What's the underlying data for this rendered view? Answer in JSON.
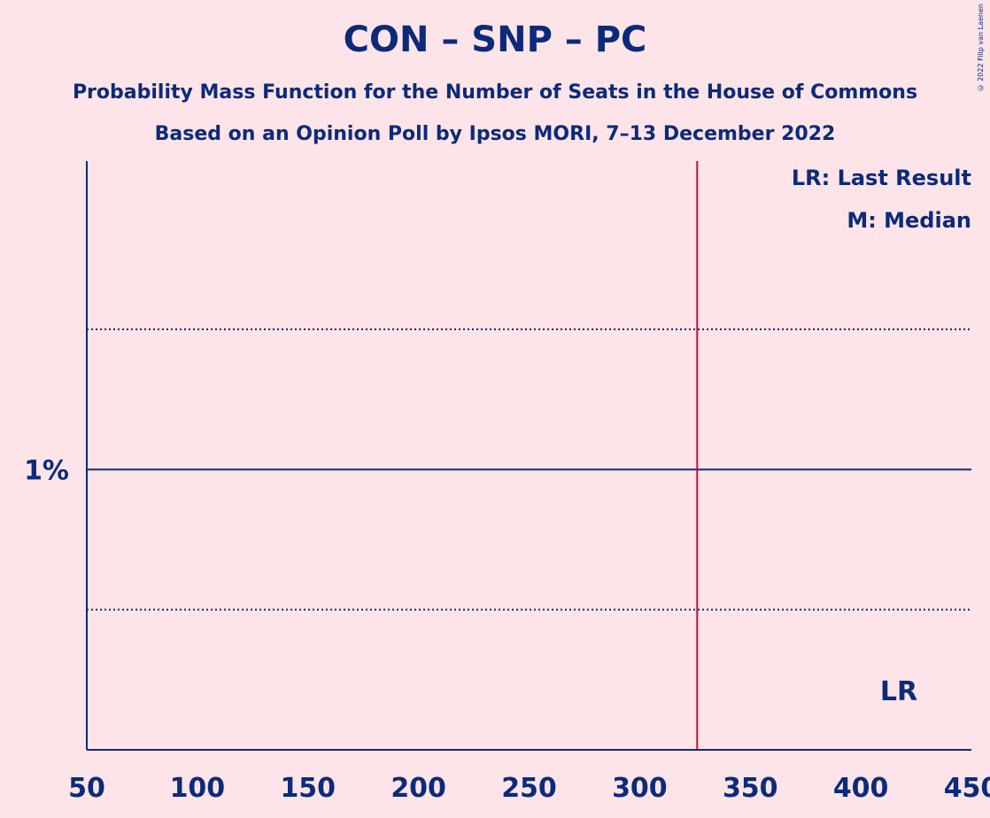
{
  "title": "CON – SNP – PC",
  "subtitle": "Probability Mass Function for the Number of Seats in the House of Commons",
  "subtitle2": "Based on an Opinion Poll by Ipsos MORI, 7–13 December 2022",
  "copyright": "© 2022 Filip van Laenen",
  "legend": {
    "lr": "LR: Last Result",
    "m": "M: Median"
  },
  "lr_marker": "LR",
  "colors": {
    "background": "#fde4e8",
    "axis": "#0b2a7a",
    "last_result": "#c0103a",
    "bars": "#ffffff"
  },
  "chart_data": {
    "type": "bar",
    "xlabel": "",
    "ylabel": "",
    "xlim": [
      50,
      450
    ],
    "ylim": [
      0,
      2.1
    ],
    "x_ticks": [
      50,
      100,
      150,
      200,
      250,
      300,
      350,
      400,
      450
    ],
    "x_tick_labels": [
      "50",
      "100",
      "150",
      "200",
      "250",
      "300",
      "350",
      "400",
      "450"
    ],
    "y_ticks": [
      1
    ],
    "y_tick_labels": [
      "1%"
    ],
    "y_dotted": [
      0.5,
      1.5
    ],
    "last_result": 326,
    "x": [],
    "values": []
  }
}
